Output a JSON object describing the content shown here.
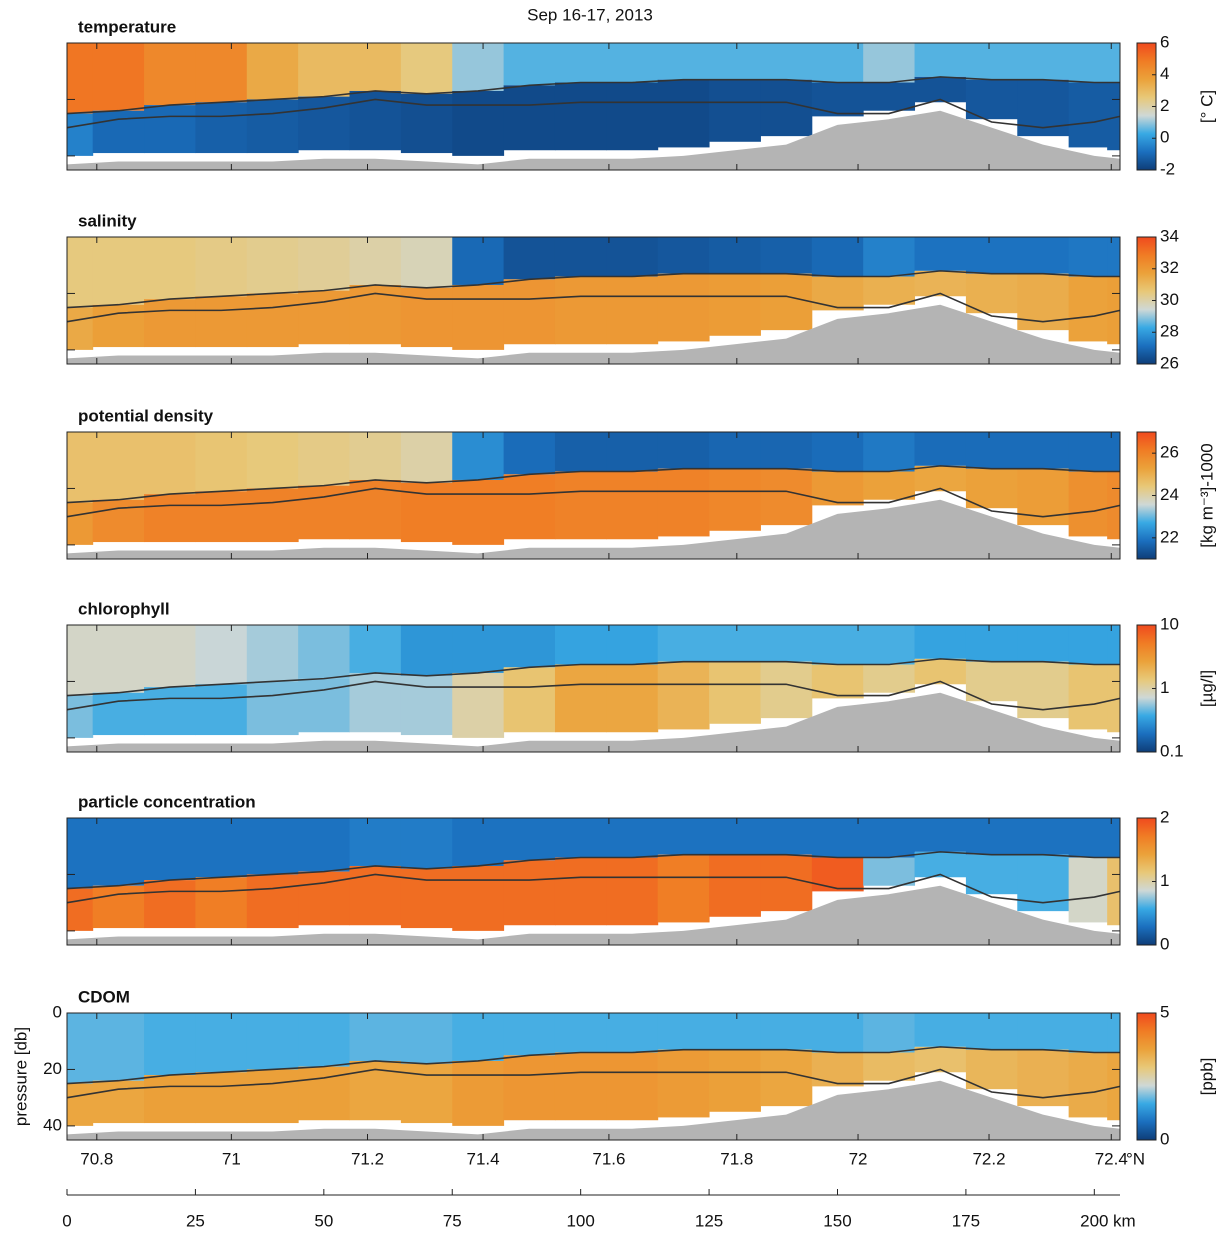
{
  "title": "Sep 16-17, 2013",
  "colormap": [
    "#0e3d78",
    "#1b6fbe",
    "#38a9e4",
    "#cfd8d6",
    "#e8c878",
    "#eba23a",
    "#f07c24",
    "#f04a1e"
  ],
  "seabed_color": "#b4b4b4",
  "contour_color": "#333333",
  "section": {
    "x": [
      0,
      10,
      20,
      30,
      40,
      50,
      60,
      70,
      80,
      90,
      100,
      110,
      120,
      130,
      140,
      150,
      160,
      170,
      180,
      190,
      200,
      205
    ],
    "bottom": [
      43,
      42,
      42,
      42,
      42,
      41,
      41,
      42,
      43,
      41,
      41,
      41,
      40,
      38,
      36,
      29,
      27,
      24,
      30,
      36,
      40,
      41
    ],
    "contours": [
      [
        25,
        24,
        22,
        21,
        20,
        19,
        17,
        18,
        17,
        15,
        14,
        14,
        13,
        13,
        13,
        14,
        14,
        12,
        13,
        13,
        14,
        14
      ],
      [
        30,
        27,
        26,
        26,
        25,
        23,
        20,
        22,
        22,
        22,
        21,
        21,
        21,
        21,
        21,
        25,
        25,
        20,
        28,
        30,
        28,
        26
      ]
    ]
  },
  "pressure_axis": {
    "label": "pressure [db]",
    "ylim": [
      0,
      45
    ],
    "yticks": [
      0,
      20,
      40
    ]
  },
  "lat_axis": {
    "label": "°N",
    "ticks": [
      {
        "value": 5.8,
        "label": "70.8"
      },
      {
        "value": 32,
        "label": "71"
      },
      {
        "value": 58.5,
        "label": "71.2"
      },
      {
        "value": 81,
        "label": "71.4"
      },
      {
        "value": 105.5,
        "label": "71.6"
      },
      {
        "value": 130.4,
        "label": "71.8"
      },
      {
        "value": 154,
        "label": "72"
      },
      {
        "value": 179.5,
        "label": "72.2"
      },
      {
        "value": 203.3,
        "label": "72.4"
      }
    ]
  },
  "distance_axis": {
    "label": "km",
    "xlim": [
      0,
      205
    ],
    "xticks": [
      0,
      25,
      50,
      75,
      100,
      125,
      150,
      175,
      200
    ]
  },
  "chart_data": [
    {
      "type": "section",
      "title": "temperature",
      "colorbar": {
        "label": "[° C]",
        "lim": [
          -2,
          6
        ],
        "ticks": [
          -2,
          0,
          2,
          4,
          6
        ],
        "log": false
      },
      "surface": [
        5,
        5,
        4.5,
        4.5,
        3.5,
        3,
        3,
        2.5,
        1,
        0.5,
        0.5,
        0.5,
        0.5,
        0.5,
        0.5,
        0.5,
        1,
        0.5,
        0.5,
        0.5,
        0.5,
        0.5
      ],
      "deep": [
        -0.5,
        -1,
        -1,
        -1.2,
        -1.3,
        -1.4,
        -1.5,
        -1.6,
        -1.7,
        -1.7,
        -1.7,
        -1.7,
        -1.7,
        -1.6,
        -1.6,
        -1.5,
        -1.5,
        -1.5,
        -1.4,
        -1.4,
        -1.3,
        -1.3
      ]
    },
    {
      "type": "section",
      "title": "salinity",
      "colorbar": {
        "lim": [
          26,
          34
        ],
        "ticks": [
          26,
          28,
          30,
          32,
          34
        ],
        "log": false
      },
      "surface": [
        30.5,
        30.5,
        30.5,
        30.4,
        30.3,
        30.2,
        30,
        29.8,
        27,
        26.5,
        26.5,
        26.5,
        26.6,
        26.7,
        26.8,
        27,
        27.5,
        27.2,
        27.2,
        27.2,
        27.3,
        27.3
      ],
      "deep": [
        31.5,
        31.8,
        32,
        32,
        32,
        32,
        32,
        32.1,
        32.1,
        32.1,
        32,
        32,
        32,
        31.9,
        31.8,
        31.5,
        31.3,
        31.2,
        31.3,
        31.4,
        31.7,
        31.8
      ]
    },
    {
      "type": "section",
      "title": "potential density",
      "colorbar": {
        "label": "[kg m⁻³]-1000",
        "lim": [
          21,
          27
        ],
        "ticks": [
          22,
          24,
          26
        ],
        "log": false
      },
      "surface": [
        24.6,
        24.6,
        24.6,
        24.5,
        24.4,
        24.3,
        24.2,
        24,
        22.3,
        21.8,
        21.6,
        21.6,
        21.6,
        21.7,
        21.7,
        21.8,
        22,
        21.8,
        21.8,
        21.8,
        21.8,
        21.8
      ],
      "deep": [
        25.5,
        25.8,
        26,
        26,
        26,
        26,
        26,
        26.1,
        26.1,
        26.1,
        26,
        26,
        26,
        25.9,
        25.8,
        25.5,
        25.3,
        25.2,
        25.3,
        25.4,
        25.7,
        25.8
      ]
    },
    {
      "type": "section",
      "title": "chlorophyll",
      "colorbar": {
        "label": "[µg/l]",
        "lim": [
          0.1,
          10
        ],
        "ticks": [
          0.1,
          1,
          10
        ],
        "log": true
      },
      "surface": [
        0.8,
        0.8,
        0.8,
        0.7,
        0.6,
        0.5,
        0.4,
        0.3,
        0.3,
        0.3,
        0.35,
        0.35,
        0.4,
        0.4,
        0.4,
        0.4,
        0.4,
        0.35,
        0.35,
        0.35,
        0.35,
        0.35
      ],
      "deep": [
        0.5,
        0.4,
        0.4,
        0.4,
        0.5,
        0.5,
        0.6,
        0.6,
        1,
        1.5,
        2.5,
        2.5,
        2,
        1.5,
        1.2,
        1.5,
        1.2,
        1.5,
        1.2,
        1.2,
        1.5,
        1.5
      ]
    },
    {
      "type": "section",
      "title": "particle concentration",
      "colorbar": {
        "lim": [
          0,
          2
        ],
        "ticks": [
          0,
          1,
          2
        ],
        "log": false
      },
      "surface": [
        0.3,
        0.3,
        0.3,
        0.3,
        0.3,
        0.3,
        0.35,
        0.35,
        0.3,
        0.3,
        0.3,
        0.3,
        0.3,
        0.3,
        0.3,
        0.3,
        0.3,
        0.3,
        0.3,
        0.3,
        0.3,
        0.3
      ],
      "deep": [
        1.8,
        1.7,
        1.8,
        1.7,
        1.8,
        1.8,
        1.8,
        1.8,
        1.8,
        1.8,
        1.8,
        1.8,
        1.7,
        1.8,
        1.8,
        1.9,
        0.7,
        0.6,
        0.6,
        0.6,
        0.9,
        1.2
      ]
    },
    {
      "type": "section",
      "title": "CDOM",
      "colorbar": {
        "label": "[ppb]",
        "lim": [
          0,
          5
        ],
        "ticks": [
          0,
          5
        ],
        "log": false
      },
      "surface": [
        1.6,
        1.6,
        1.5,
        1.5,
        1.5,
        1.5,
        1.6,
        1.6,
        1.5,
        1.5,
        1.5,
        1.5,
        1.5,
        1.5,
        1.5,
        1.5,
        1.6,
        1.5,
        1.5,
        1.5,
        1.5,
        1.5
      ],
      "deep": [
        3.5,
        3.5,
        3.6,
        3.6,
        3.6,
        3.6,
        3.5,
        3.5,
        3.7,
        3.8,
        3.8,
        3.8,
        3.7,
        3.6,
        3.5,
        3.3,
        3.1,
        3,
        3.2,
        3.3,
        3.4,
        3.5
      ]
    }
  ]
}
